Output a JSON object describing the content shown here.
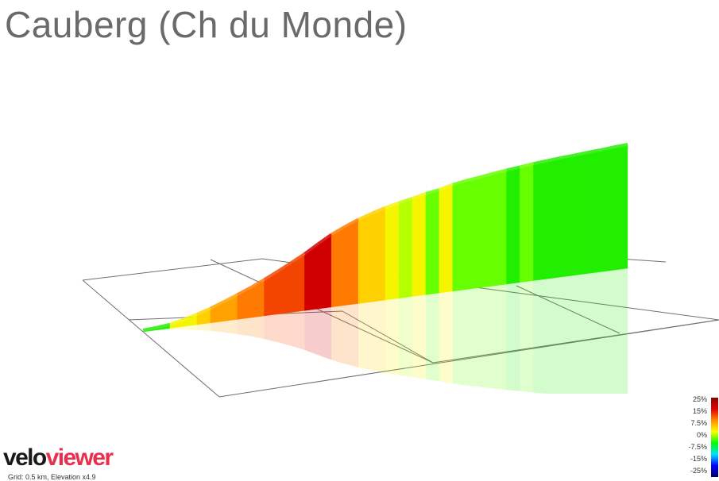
{
  "title": "Cauberg (Ch du Monde)",
  "logo": {
    "part1": "velo",
    "part2": "viewer"
  },
  "footnote": "Grid: 0.5 km, Elevation x4.9",
  "gradient_scale": {
    "labels": [
      "25%",
      "15%",
      "7.5%",
      "0%",
      "-7.5%",
      "-15%",
      "-25%"
    ],
    "colors": [
      "#8b0000",
      "#e00000",
      "#ff8c00",
      "#ffff00",
      "#00ff00",
      "#00e0ff",
      "#0000ff",
      "#000060"
    ]
  },
  "chart_data": {
    "type": "area",
    "title": "Cauberg (Ch du Monde)",
    "xlabel": "",
    "ylabel": "",
    "grid": true,
    "grid_spacing_km": 0.5,
    "elevation_exaggeration": 4.9,
    "x": [
      0,
      0.05,
      0.1,
      0.15,
      0.2,
      0.25,
      0.3,
      0.35,
      0.4,
      0.45,
      0.5,
      0.55,
      0.6,
      0.65,
      0.7,
      0.75,
      0.8,
      0.85,
      0.9,
      0.95,
      1.0,
      1.05,
      1.1,
      1.15,
      1.2,
      1.25,
      1.3,
      1.35,
      1.4,
      1.45,
      1.5,
      1.55,
      1.6,
      1.65,
      1.7,
      1.75,
      1.8
    ],
    "gradient_pct": [
      1.5,
      2.5,
      5.5,
      6.5,
      7.5,
      9,
      9.5,
      10,
      11,
      12,
      12.5,
      13,
      15,
      14,
      11,
      10,
      8,
      7,
      5.5,
      5,
      5.5,
      4,
      6,
      4,
      3,
      3.5,
      3,
      2.5,
      3,
      2,
      2,
      1.5,
      2,
      1.5,
      2,
      1.5,
      1.5
    ]
  }
}
